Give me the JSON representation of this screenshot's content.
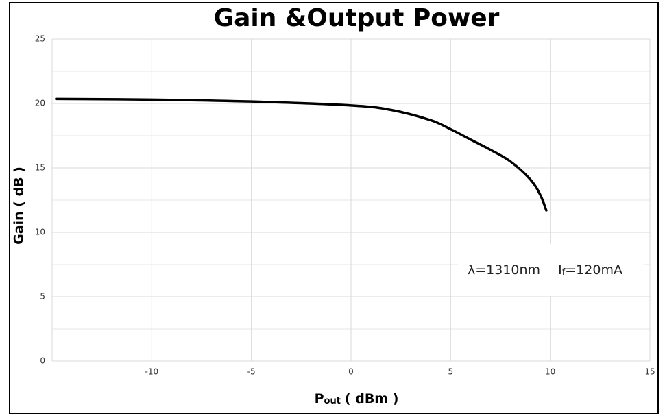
{
  "chart_data": {
    "type": "line",
    "title": "Gain &Output Power",
    "xlabel": {
      "symbol": "P",
      "subscript": "out",
      "unit": "( dBm )"
    },
    "ylabel": "Gain ( dB )",
    "annotation": {
      "wavelength": "λ=1310nm",
      "current_symbol": "I",
      "current_subscript": "f",
      "current_value": "=120mA"
    },
    "xlim": [
      -15,
      15
    ],
    "xticks": [
      -10,
      -5,
      0,
      5,
      10,
      15
    ],
    "ylim": [
      0,
      25
    ],
    "yticks": [
      0,
      5,
      10,
      15,
      20,
      25
    ],
    "yminorticks": [
      2.5,
      7.5,
      12.5,
      17.5,
      22.5
    ],
    "grid": true,
    "series": [
      {
        "color": "#000000",
        "x": [
          -14.8,
          -10,
          -5,
          0,
          2,
          4,
          5,
          6,
          7,
          8,
          9,
          9.5,
          9.8
        ],
        "values": [
          20.35,
          20.3,
          20.15,
          19.85,
          19.5,
          18.7,
          18.0,
          17.2,
          16.4,
          15.5,
          14.1,
          12.9,
          11.7
        ]
      }
    ]
  }
}
